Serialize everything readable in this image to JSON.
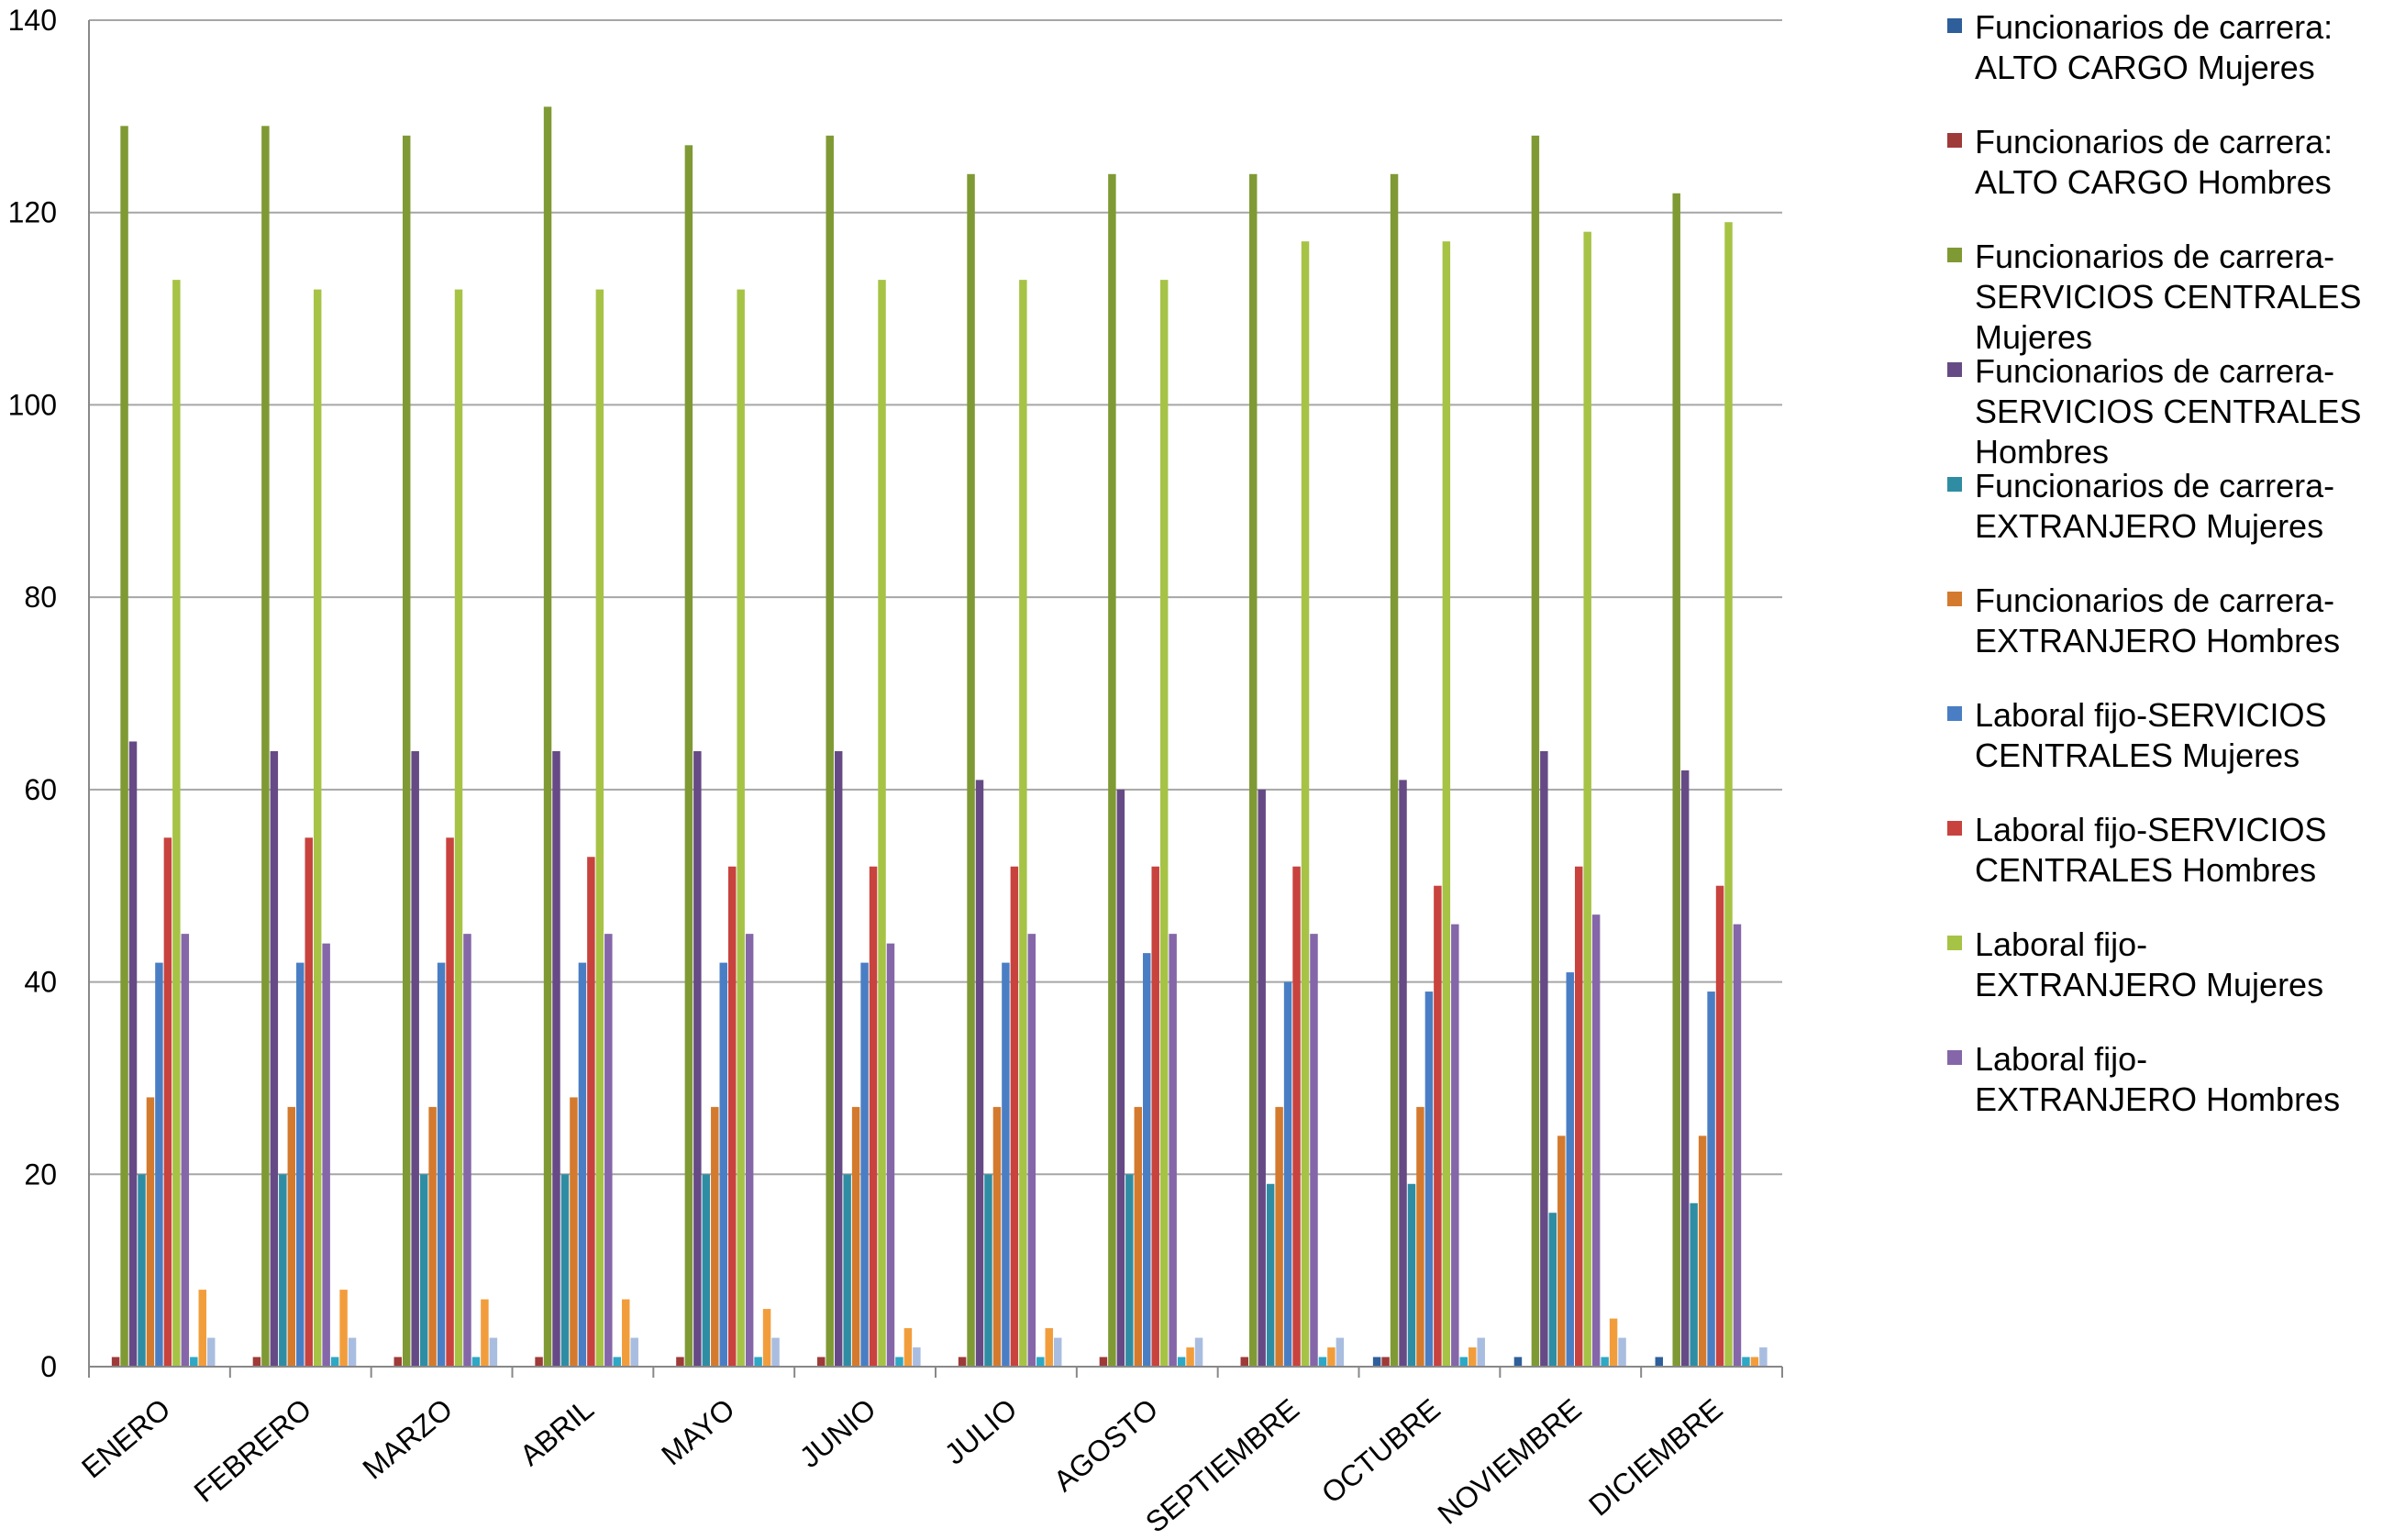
{
  "chart_data": {
    "type": "bar",
    "title": "",
    "xlabel": "",
    "ylabel": "",
    "ylim": [
      0,
      140
    ],
    "yticks": [
      0,
      20,
      40,
      60,
      80,
      100,
      120,
      140
    ],
    "grid": true,
    "legend_position": "right",
    "categories": [
      "ENERO",
      "FEBRERO",
      "MARZO",
      "ABRIL",
      "MAYO",
      "JUNIO",
      "JULIO",
      "AGOSTO",
      "SEPTIEMBRE",
      "OCTUBRE",
      "NOVIEMBRE",
      "DICIEMBRE"
    ],
    "series": [
      {
        "name": "Funcionarios de carrera: ALTO CARGO Mujeres",
        "legend_lines": [
          "Funcionarios de carrera:",
          "ALTO CARGO Mujeres"
        ],
        "color": "#2E5F9A",
        "values": [
          0,
          0,
          0,
          0,
          0,
          0,
          0,
          0,
          0,
          1,
          1,
          1
        ]
      },
      {
        "name": "Funcionarios de carrera: ALTO CARGO Hombres",
        "legend_lines": [
          "Funcionarios de carrera:",
          "ALTO CARGO Hombres"
        ],
        "color": "#9E3A38",
        "values": [
          1,
          1,
          1,
          1,
          1,
          1,
          1,
          1,
          1,
          1,
          0,
          0
        ]
      },
      {
        "name": "Funcionarios de carrera-SERVICIOS CENTRALES Mujeres",
        "legend_lines": [
          "Funcionarios de carrera-",
          "SERVICIOS CENTRALES",
          "Mujeres"
        ],
        "color": "#7F9A34",
        "values": [
          129,
          129,
          128,
          131,
          127,
          128,
          124,
          124,
          124,
          124,
          128,
          122
        ]
      },
      {
        "name": "Funcionarios de carrera-SERVICIOS CENTRALES Hombres",
        "legend_lines": [
          "Funcionarios de carrera-",
          "SERVICIOS CENTRALES",
          "Hombres"
        ],
        "color": "#664A86",
        "values": [
          65,
          64,
          64,
          64,
          64,
          64,
          61,
          60,
          60,
          61,
          64,
          62
        ]
      },
      {
        "name": "Funcionarios de carrera-EXTRANJERO Mujeres",
        "legend_lines": [
          "Funcionarios de carrera-",
          "EXTRANJERO Mujeres"
        ],
        "color": "#2F8DA3",
        "values": [
          20,
          20,
          20,
          20,
          20,
          20,
          20,
          20,
          19,
          19,
          16,
          17
        ]
      },
      {
        "name": "Funcionarios de carrera-EXTRANJERO Hombres",
        "legend_lines": [
          "Funcionarios de carrera-",
          "EXTRANJERO Hombres"
        ],
        "color": "#D47A2E",
        "values": [
          28,
          27,
          27,
          28,
          27,
          27,
          27,
          27,
          27,
          27,
          24,
          24
        ]
      },
      {
        "name": "Laboral fijo-SERVICIOS CENTRALES Mujeres",
        "legend_lines": [
          "Laboral fijo-SERVICIOS",
          "CENTRALES Mujeres"
        ],
        "color": "#4A7EC4",
        "values": [
          42,
          42,
          42,
          42,
          42,
          42,
          42,
          43,
          40,
          39,
          41,
          39
        ]
      },
      {
        "name": "Laboral fijo-SERVICIOS CENTRALES Hombres",
        "legend_lines": [
          "Laboral fijo-SERVICIOS",
          "CENTRALES Hombres"
        ],
        "color": "#C8423E",
        "values": [
          55,
          55,
          55,
          53,
          52,
          52,
          52,
          52,
          52,
          50,
          52,
          50
        ]
      },
      {
        "name": "Laboral fijo-EXTRANJERO Mujeres",
        "legend_lines": [
          "Laboral fijo-",
          "EXTRANJERO Mujeres"
        ],
        "color": "#A6C346",
        "values": [
          113,
          112,
          112,
          112,
          112,
          113,
          113,
          113,
          117,
          117,
          118,
          119
        ]
      },
      {
        "name": "Laboral fijo-EXTRANJERO Hombres",
        "legend_lines": [
          "Laboral fijo-",
          "EXTRANJERO Hombres"
        ],
        "color": "#8466A9",
        "values": [
          45,
          44,
          45,
          45,
          45,
          44,
          45,
          45,
          45,
          46,
          47,
          46
        ]
      },
      {
        "name": "",
        "legend_lines": [],
        "color": "#2EA8C4",
        "values": [
          1,
          1,
          1,
          1,
          1,
          1,
          1,
          1,
          1,
          1,
          1,
          1
        ]
      },
      {
        "name": "",
        "legend_lines": [],
        "color": "#F29D3C",
        "values": [
          8,
          8,
          7,
          7,
          6,
          4,
          4,
          2,
          2,
          2,
          5,
          1
        ]
      },
      {
        "name": "",
        "legend_lines": [],
        "color": "#A9BDE0",
        "values": [
          3,
          3,
          3,
          3,
          3,
          2,
          3,
          3,
          3,
          3,
          3,
          2
        ]
      }
    ]
  }
}
